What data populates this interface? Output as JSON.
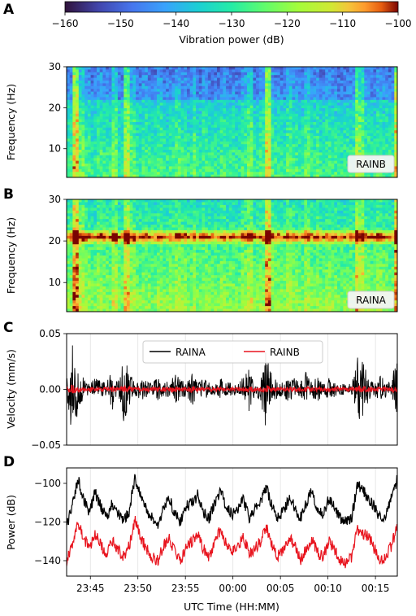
{
  "chart_data": [
    {
      "panel": "A",
      "type": "heatmap",
      "station": "RAINB",
      "ylabel": "Frequency (Hz)",
      "ylim": [
        3,
        30
      ],
      "yticks": [
        10,
        20,
        30
      ],
      "colorbar": {
        "label": "Vibration power (dB)",
        "range": [
          -160,
          -100
        ],
        "ticks": [
          -160,
          -150,
          -140,
          -130,
          -120,
          -110,
          -100
        ],
        "colormap": "turbo"
      }
    },
    {
      "panel": "B",
      "type": "heatmap",
      "station": "RAINA",
      "ylabel": "Frequency (Hz)",
      "ylim": [
        3,
        30
      ],
      "yticks": [
        10,
        20,
        30
      ],
      "band_peak_hz": 21
    },
    {
      "panel": "C",
      "type": "line",
      "ylabel": "Velocity (mm/s)",
      "ylim": [
        -0.05,
        0.05
      ],
      "yticks": [
        -0.05,
        0.0,
        0.05
      ],
      "ytick_labels": [
        "−0.05",
        "0.00",
        "0.05"
      ],
      "series": [
        {
          "name": "RAINA",
          "color": "#000000",
          "amplitude_envelope": [
            0.008,
            0.045,
            0.02,
            0.01,
            0.005,
            0.012,
            0.008,
            0.006,
            0.02,
            0.005,
            0.032,
            0.015,
            0.006,
            0.01,
            0.008,
            0.005,
            0.012,
            0.006,
            0.008,
            0.014,
            0.01,
            0.006,
            0.015,
            0.005,
            0.01,
            0.006,
            0.005,
            0.01,
            0.006,
            0.007,
            0.005,
            0.012,
            0.02,
            0.006,
            0.01,
            0.04,
            0.012,
            0.008,
            0.006,
            0.014,
            0.01,
            0.006,
            0.016,
            0.008,
            0.012,
            0.006,
            0.01,
            0.008,
            0.005,
            0.006,
            0.006,
            0.032,
            0.025,
            0.01,
            0.006,
            0.012,
            0.008,
            0.006,
            0.045
          ]
        },
        {
          "name": "RAINB",
          "color": "#e8141e",
          "amplitude_envelope": [
            0.002,
            0.004,
            0.003,
            0.002,
            0.002,
            0.002,
            0.002,
            0.002,
            0.003,
            0.002,
            0.004,
            0.003,
            0.002,
            0.002,
            0.002,
            0.002,
            0.002,
            0.002,
            0.002,
            0.003,
            0.002,
            0.002,
            0.003,
            0.002,
            0.002,
            0.002,
            0.002,
            0.002,
            0.002,
            0.002,
            0.002,
            0.002,
            0.003,
            0.002,
            0.002,
            0.004,
            0.002,
            0.002,
            0.002,
            0.003,
            0.002,
            0.002,
            0.003,
            0.002,
            0.002,
            0.002,
            0.002,
            0.002,
            0.002,
            0.002,
            0.002,
            0.003,
            0.003,
            0.002,
            0.002,
            0.002,
            0.002,
            0.002,
            0.004
          ]
        }
      ],
      "legend": "top-center"
    },
    {
      "panel": "D",
      "type": "line",
      "ylabel": "Power (dB)",
      "ylim": [
        -148,
        -92
      ],
      "yticks": [
        -140,
        -120,
        -100
      ],
      "ytick_labels": [
        "−140",
        "−120",
        "−100"
      ],
      "xlabel": "UTC Time (HH:MM)",
      "xtick_labels": [
        "23:45",
        "23:50",
        "23:55",
        "00:00",
        "00:05",
        "00:10",
        "00:15"
      ],
      "xtick_minutes": [
        0,
        5,
        10,
        15,
        20,
        25,
        30
      ],
      "x_range_minutes": [
        -2.5,
        32.3
      ],
      "series": [
        {
          "name": "RAINA",
          "color": "#000000",
          "values": [
            -122,
            -112,
            -98,
            -108,
            -115,
            -105,
            -112,
            -118,
            -110,
            -116,
            -120,
            -114,
            -97,
            -106,
            -114,
            -118,
            -122,
            -112,
            -108,
            -116,
            -120,
            -112,
            -110,
            -106,
            -115,
            -118,
            -110,
            -104,
            -112,
            -116,
            -113,
            -108,
            -118,
            -114,
            -110,
            -102,
            -112,
            -118,
            -114,
            -108,
            -112,
            -118,
            -110,
            -104,
            -114,
            -116,
            -108,
            -112,
            -118,
            -120,
            -118,
            -100,
            -104,
            -108,
            -112,
            -118,
            -116,
            -106,
            -98
          ]
        },
        {
          "name": "RAINB",
          "color": "#e8141e",
          "values": [
            -140,
            -132,
            -120,
            -128,
            -134,
            -126,
            -132,
            -136,
            -130,
            -134,
            -138,
            -132,
            -118,
            -128,
            -134,
            -138,
            -140,
            -132,
            -128,
            -136,
            -140,
            -132,
            -130,
            -126,
            -134,
            -138,
            -130,
            -124,
            -132,
            -136,
            -133,
            -128,
            -136,
            -134,
            -130,
            -122,
            -132,
            -138,
            -134,
            -128,
            -132,
            -140,
            -134,
            -128,
            -136,
            -138,
            -130,
            -134,
            -140,
            -142,
            -138,
            -124,
            -126,
            -128,
            -134,
            -140,
            -138,
            -132,
            -122
          ]
        }
      ]
    }
  ],
  "panels": {
    "A": {
      "letter": "A",
      "station": "RAINB"
    },
    "B": {
      "letter": "B",
      "station": "RAINA"
    },
    "C": {
      "letter": "C",
      "legend": [
        "RAINA",
        "RAINB"
      ]
    },
    "D": {
      "letter": "D"
    }
  },
  "colors": {
    "raina": "#000000",
    "rainb": "#e8141e",
    "spectrogram_floor": "#2b1a4a"
  }
}
